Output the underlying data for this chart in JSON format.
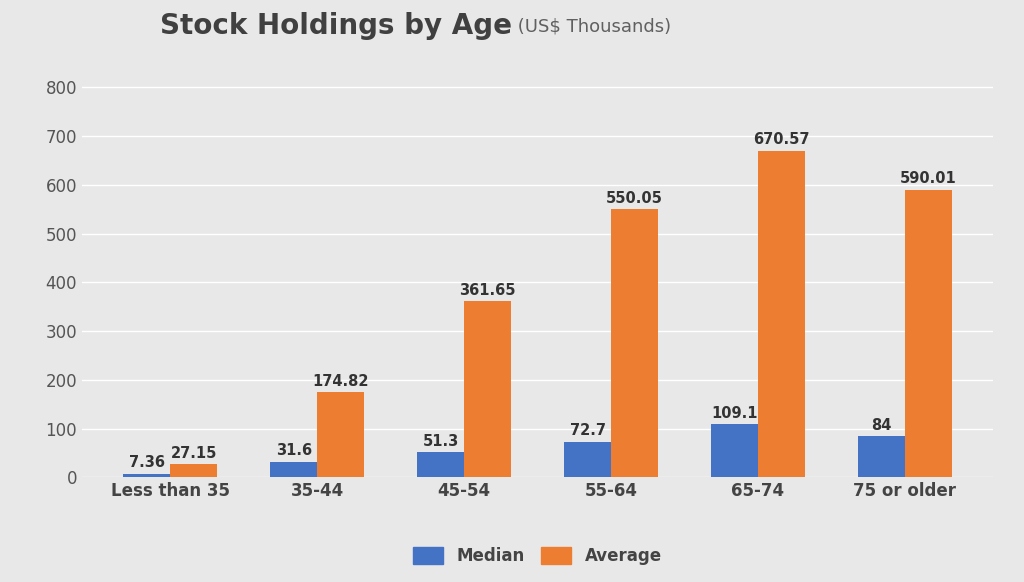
{
  "title_main": "Stock Holdings by Age",
  "title_sub": " (US$ Thousands)",
  "categories": [
    "Less than 35",
    "35-44",
    "45-54",
    "55-64",
    "65-74",
    "75 or older"
  ],
  "median": [
    7.36,
    31.6,
    51.3,
    72.7,
    109.1,
    84
  ],
  "average": [
    27.15,
    174.82,
    361.65,
    550.05,
    670.57,
    590.01
  ],
  "median_color": "#4472C4",
  "average_color": "#ED7D31",
  "background_color": "#E8E8E8",
  "ylim": [
    0,
    860
  ],
  "yticks": [
    0,
    100,
    200,
    300,
    400,
    500,
    600,
    700,
    800
  ],
  "bar_width": 0.32,
  "legend_labels": [
    "Median",
    "Average"
  ],
  "title_main_fontsize": 20,
  "title_sub_fontsize": 13,
  "tick_fontsize": 12,
  "value_fontsize": 10.5,
  "legend_fontsize": 12
}
